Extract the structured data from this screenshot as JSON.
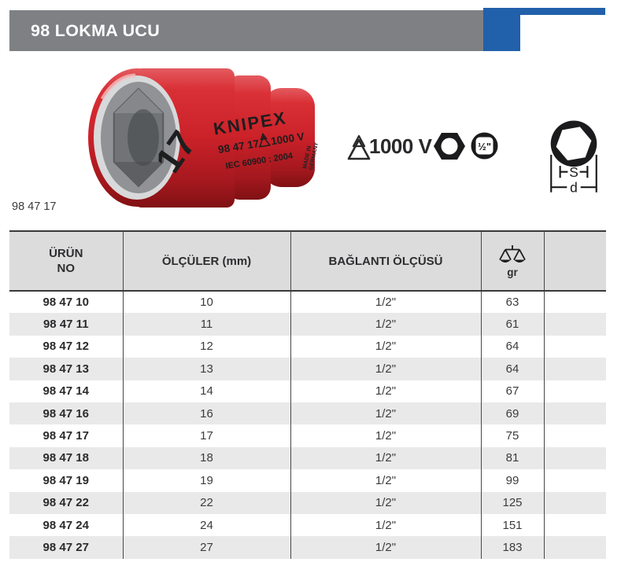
{
  "header": {
    "title": "98 LOKMA UCU",
    "bar_color": "#7e8084",
    "accent_color": "#2160aa"
  },
  "product": {
    "caption": "98 47 17",
    "photo": {
      "size_marking": "17",
      "brand": "KNIPEX",
      "part_no": "98 47 17",
      "voltage": "1000 V",
      "standard": "IEC 60900 : 2004",
      "origin_line1": "MADE IN",
      "origin_line2": "GERMANY",
      "body_color": "#cb2129"
    },
    "badges": {
      "voltage_rating": "1000 V",
      "drive_size": "½\"",
      "icons": [
        "double-triangle-icon",
        "hex-nut-icon",
        "half-inch-drive-icon"
      ]
    },
    "diagram": {
      "s_label": "S",
      "d_label": "d"
    }
  },
  "table": {
    "column_keys": [
      "urun-no",
      "olculer-mm",
      "baglanti-olcusu",
      "gr",
      "notes"
    ],
    "columns": [
      {
        "label": "ÜRÜN\nNO"
      },
      {
        "label": "ÖLÇÜLER (mm)"
      },
      {
        "label": "BAĞLANTI ÖLÇÜSÜ"
      },
      {
        "label": "gr",
        "icon": "scale-icon"
      },
      {
        "label": ""
      }
    ],
    "rows": [
      [
        "98 47 10",
        "10",
        "1/2\"",
        "63",
        ""
      ],
      [
        "98 47 11",
        "11",
        "1/2\"",
        "61",
        ""
      ],
      [
        "98 47 12",
        "12",
        "1/2\"",
        "64",
        ""
      ],
      [
        "98 47 13",
        "13",
        "1/2\"",
        "64",
        ""
      ],
      [
        "98 47 14",
        "14",
        "1/2\"",
        "67",
        ""
      ],
      [
        "98 47 16",
        "16",
        "1/2\"",
        "69",
        ""
      ],
      [
        "98 47 17",
        "17",
        "1/2\"",
        "75",
        ""
      ],
      [
        "98 47 18",
        "18",
        "1/2\"",
        "81",
        ""
      ],
      [
        "98 47 19",
        "19",
        "1/2\"",
        "99",
        ""
      ],
      [
        "98 47 22",
        "22",
        "1/2\"",
        "125",
        ""
      ],
      [
        "98 47 24",
        "24",
        "1/2\"",
        "151",
        ""
      ],
      [
        "98 47 27",
        "27",
        "1/2\"",
        "183",
        ""
      ]
    ],
    "colors": {
      "header_bg": "#dcdcdd",
      "row_stripe": "#e9e9ea",
      "rule_dark": "#39393b",
      "separator": "#48484a"
    }
  }
}
